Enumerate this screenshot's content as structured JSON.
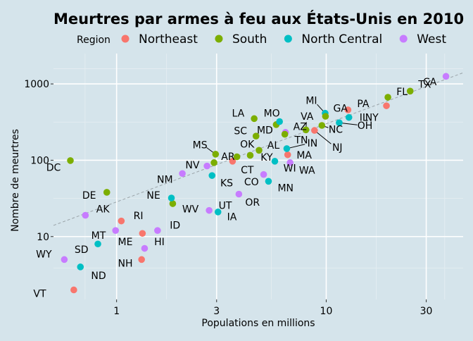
{
  "chart_data": {
    "type": "scatter",
    "title": "Meurtres par armes à feu aux États-Unis en 2010",
    "xlabel": "Populations en millions",
    "ylabel": "Nombre de meurtres",
    "x_scale": "log",
    "y_scale": "log",
    "xlim": [
      0.5,
      45
    ],
    "ylim": [
      1.5,
      2500
    ],
    "x_ticks": [
      1,
      3,
      10,
      30
    ],
    "y_ticks": [
      10,
      100,
      1000
    ],
    "grid": true,
    "legend": {
      "title": "Region",
      "position": "top",
      "entries": [
        {
          "name": "Northeast",
          "color": "#f8766d"
        },
        {
          "name": "South",
          "color": "#7cae00"
        },
        {
          "name": "North Central",
          "color": "#00bfc4"
        },
        {
          "name": "West",
          "color": "#c77cff"
        }
      ]
    },
    "reference_line": {
      "style": "dashed",
      "color": "#9aa3a8",
      "points": [
        [
          0.5,
          14
        ],
        [
          45,
          1400
        ]
      ]
    },
    "points": [
      {
        "label": "VT",
        "region": "Northeast",
        "x": 0.625,
        "y": 2,
        "lx": 0.43,
        "ly": 1.8
      },
      {
        "label": "WY",
        "region": "West",
        "x": 0.563,
        "y": 5,
        "lx": 0.45,
        "ly": 5.9
      },
      {
        "label": "ND",
        "region": "North Central",
        "x": 0.672,
        "y": 4,
        "lx": 0.82,
        "ly": 3.1
      },
      {
        "label": "SD",
        "region": "North Central",
        "x": 0.814,
        "y": 8,
        "lx": 0.68,
        "ly": 6.8
      },
      {
        "label": "MT",
        "region": "West",
        "x": 0.989,
        "y": 12,
        "lx": 0.82,
        "ly": 10.4
      },
      {
        "label": "NH",
        "region": "Northeast",
        "x": 1.316,
        "y": 5,
        "lx": 1.1,
        "ly": 4.5
      },
      {
        "label": "ME",
        "region": "Northeast",
        "x": 1.328,
        "y": 11,
        "lx": 1.1,
        "ly": 8.6
      },
      {
        "label": "HI",
        "region": "West",
        "x": 1.36,
        "y": 7,
        "lx": 1.6,
        "ly": 8.6
      },
      {
        "label": "ID",
        "region": "West",
        "x": 1.568,
        "y": 12,
        "lx": 1.9,
        "ly": 14.1
      },
      {
        "label": "RI",
        "region": "Northeast",
        "x": 1.053,
        "y": 16,
        "lx": 1.27,
        "ly": 18.8
      },
      {
        "label": "AK",
        "region": "West",
        "x": 0.71,
        "y": 19,
        "lx": 0.86,
        "ly": 23.1
      },
      {
        "label": "DE",
        "region": "South",
        "x": 0.898,
        "y": 38,
        "lx": 0.74,
        "ly": 35
      },
      {
        "label": "DC",
        "region": "South",
        "x": 0.602,
        "y": 99,
        "lx": 0.5,
        "ly": 81
      },
      {
        "label": "WV",
        "region": "South",
        "x": 1.853,
        "y": 27,
        "lx": 2.25,
        "ly": 23.1
      },
      {
        "label": "NE",
        "region": "North Central",
        "x": 1.826,
        "y": 32,
        "lx": 1.5,
        "ly": 35
      },
      {
        "label": "NM",
        "region": "West",
        "x": 2.059,
        "y": 67,
        "lx": 1.7,
        "ly": 56
      },
      {
        "label": "UT",
        "region": "West",
        "x": 2.764,
        "y": 22,
        "lx": 3.3,
        "ly": 25.7
      },
      {
        "label": "IA",
        "region": "North Central",
        "x": 3.046,
        "y": 21,
        "lx": 3.55,
        "ly": 18.3
      },
      {
        "label": "NV",
        "region": "West",
        "x": 2.7,
        "y": 84,
        "lx": 2.3,
        "ly": 87
      },
      {
        "label": "KS",
        "region": "North Central",
        "x": 2.853,
        "y": 63,
        "lx": 3.35,
        "ly": 50.5
      },
      {
        "label": "MS",
        "region": "South",
        "x": 2.967,
        "y": 120,
        "lx": 2.5,
        "ly": 160,
        "leader": true
      },
      {
        "label": "AR",
        "region": "South",
        "x": 2.916,
        "y": 93,
        "lx": 3.4,
        "ly": 112
      },
      {
        "label": "CT",
        "region": "Northeast",
        "x": 3.574,
        "y": 97,
        "lx": 4.2,
        "ly": 75
      },
      {
        "label": "OK",
        "region": "South",
        "x": 3.751,
        "y": 111,
        "lx": 4.2,
        "ly": 163
      },
      {
        "label": "OR",
        "region": "West",
        "x": 3.831,
        "y": 36,
        "lx": 4.45,
        "ly": 28.3
      },
      {
        "label": "KY",
        "region": "South",
        "x": 4.339,
        "y": 116,
        "lx": 5.2,
        "ly": 110
      },
      {
        "label": "CO",
        "region": "West",
        "x": 5.029,
        "y": 65,
        "lx": 4.4,
        "ly": 52
      },
      {
        "label": "MN",
        "region": "North Central",
        "x": 5.304,
        "y": 53,
        "lx": 6.4,
        "ly": 43.8
      },
      {
        "label": "WI",
        "region": "North Central",
        "x": 5.687,
        "y": 97,
        "lx": 6.7,
        "ly": 79
      },
      {
        "label": "AL",
        "region": "South",
        "x": 4.78,
        "y": 135,
        "lx": 5.6,
        "ly": 158
      },
      {
        "label": "SC",
        "region": "South",
        "x": 4.625,
        "y": 207,
        "lx": 3.9,
        "ly": 243
      },
      {
        "label": "LA",
        "region": "South",
        "x": 4.533,
        "y": 351,
        "lx": 3.8,
        "ly": 413
      },
      {
        "label": "MD",
        "region": "South",
        "x": 5.774,
        "y": 293,
        "lx": 5.1,
        "ly": 250
      },
      {
        "label": "MO",
        "region": "North Central",
        "x": 5.989,
        "y": 321,
        "lx": 5.5,
        "ly": 413
      },
      {
        "label": "AZ",
        "region": "West",
        "x": 6.392,
        "y": 232,
        "lx": 7.5,
        "ly": 277
      },
      {
        "label": "TN",
        "region": "South",
        "x": 6.346,
        "y": 219,
        "lx": 7.6,
        "ly": 185
      },
      {
        "label": "MA",
        "region": "Northeast",
        "x": 6.548,
        "y": 118,
        "lx": 7.85,
        "ly": 117
      },
      {
        "label": "IN",
        "region": "North Central",
        "x": 6.484,
        "y": 142,
        "lx": 8.6,
        "ly": 168,
        "leader": true
      },
      {
        "label": "WA",
        "region": "West",
        "x": 6.725,
        "y": 93,
        "lx": 8.1,
        "ly": 74
      },
      {
        "label": "VA",
        "region": "South",
        "x": 8.001,
        "y": 250,
        "lx": 8.1,
        "ly": 375,
        "leader": true
      },
      {
        "label": "NJ",
        "region": "Northeast",
        "x": 8.792,
        "y": 246,
        "lx": 11.3,
        "ly": 148,
        "leader": true
      },
      {
        "label": "NC",
        "region": "South",
        "x": 9.535,
        "y": 286,
        "lx": 11.1,
        "ly": 255,
        "leader": true
      },
      {
        "label": "MI",
        "region": "North Central",
        "x": 9.884,
        "y": 413,
        "lx": 8.5,
        "ly": 605,
        "leader": true
      },
      {
        "label": "GA",
        "region": "South",
        "x": 9.92,
        "y": 376,
        "lx": 11.7,
        "ly": 480
      },
      {
        "label": "OH",
        "region": "North Central",
        "x": 11.537,
        "y": 310,
        "lx": 15.3,
        "ly": 285,
        "leader": true
      },
      {
        "label": "IL",
        "region": "North Central",
        "x": 12.831,
        "y": 364,
        "lx": 15.1,
        "ly": 364
      },
      {
        "label": "PA",
        "region": "Northeast",
        "x": 12.702,
        "y": 457,
        "lx": 15.0,
        "ly": 550
      },
      {
        "label": "NY",
        "region": "Northeast",
        "x": 19.378,
        "y": 517,
        "lx": 16.5,
        "ly": 364
      },
      {
        "label": "FL",
        "region": "South",
        "x": 19.687,
        "y": 669,
        "lx": 23.0,
        "ly": 792
      },
      {
        "label": "TX",
        "region": "South",
        "x": 25.146,
        "y": 805,
        "lx": 29.5,
        "ly": 990
      },
      {
        "label": "CA",
        "region": "West",
        "x": 37.254,
        "y": 1257,
        "lx": 31.2,
        "ly": 1070
      }
    ]
  }
}
